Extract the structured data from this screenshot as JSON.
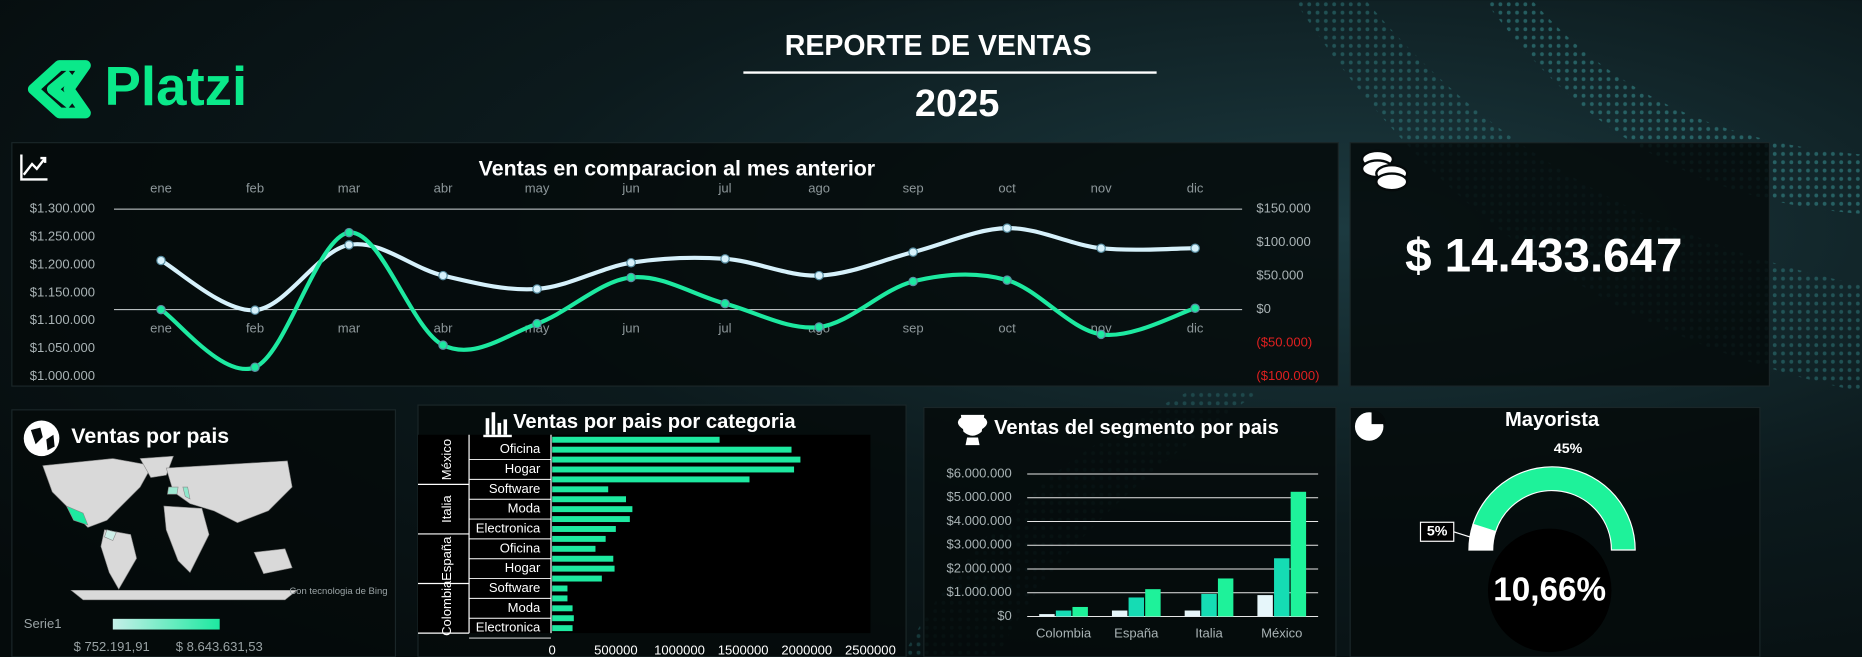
{
  "header": {
    "logo": "Platzi",
    "title": "REPORTE DE VENTAS",
    "year": "2025"
  },
  "kpi": {
    "value": "$ 14.433.647"
  },
  "map": {
    "title": "Ventas por pais",
    "attribution": "Con tecnologia de Bing",
    "legend_name": "Serie1",
    "legend_min": "$ 752.191,91",
    "legend_max": "$ 8.643.631,53"
  },
  "chart_data": [
    {
      "type": "line",
      "title": "Ventas en comparacion al mes anterior",
      "categories": [
        "ene",
        "feb",
        "mar",
        "abr",
        "may",
        "jun",
        "jul",
        "ago",
        "sep",
        "oct",
        "nov",
        "dic"
      ],
      "series": [
        {
          "color": "#d6f1fb",
          "values": [
            1208000,
            1119000,
            1236000,
            1181000,
            1157000,
            1204000,
            1211000,
            1181000,
            1223000,
            1266000,
            1230000,
            1230000
          ]
        },
        {
          "color": "#1de9a0",
          "axis": "y2",
          "values": [
            0,
            -86000,
            115000,
            -53000,
            -21000,
            48000,
            9000,
            -26000,
            42000,
            44000,
            -37000,
            2000
          ]
        }
      ],
      "ylim": [
        1000000,
        1300000
      ],
      "yticks": [
        {
          "value": 1000000,
          "label": "$1.000.000"
        },
        {
          "value": 1050000,
          "label": "$1.050.000"
        },
        {
          "value": 1100000,
          "label": "$1.100.000"
        },
        {
          "value": 1150000,
          "label": "$1.150.000"
        },
        {
          "value": 1200000,
          "label": "$1.200.000"
        },
        {
          "value": 1250000,
          "label": "$1.250.000"
        },
        {
          "value": 1300000,
          "label": "$1.300.000"
        }
      ],
      "y2lim": [
        -100000,
        150000
      ],
      "y2ticks": [
        {
          "value": -100000,
          "label": "($100.000)"
        },
        {
          "value": -50000,
          "label": "($50.000)"
        },
        {
          "value": 0,
          "label": "$0"
        },
        {
          "value": 50000,
          "label": "$50.000"
        },
        {
          "value": 100000,
          "label": "$100.000"
        },
        {
          "value": 150000,
          "label": "$150.000"
        }
      ],
      "negative_color": "#e02020",
      "smooth": true
    },
    {
      "type": "bar",
      "orientation": "horizontal",
      "title": "Ventas por pais por categoria",
      "groups": [
        "México",
        "Italia",
        "España",
        "Colombia"
      ],
      "categories": [
        null,
        "Oficina",
        null,
        "Hogar",
        null,
        "Software",
        null,
        "Moda",
        null,
        "Electronica",
        null,
        "Oficina",
        null,
        "Hogar",
        null,
        "Software",
        null,
        "Moda",
        null,
        "Electronica"
      ],
      "values": [
        1315000,
        1880000,
        1950000,
        1900000,
        1550000,
        440000,
        580000,
        630000,
        610000,
        500000,
        420000,
        340000,
        480000,
        490000,
        390000,
        120000,
        120000,
        160000,
        170000,
        160000
      ],
      "color": "#1de9a0",
      "xlim": [
        0,
        2500000
      ],
      "xticks": [
        0,
        500000,
        1000000,
        1500000,
        2000000,
        2500000
      ]
    },
    {
      "type": "bar",
      "orientation": "vertical",
      "title": "Ventas del segmento por pais",
      "categories": [
        "Colombia",
        "España",
        "Italia",
        "México"
      ],
      "series": [
        {
          "color": "#e6f6fa",
          "values": [
            100000,
            250000,
            250000,
            900000
          ]
        },
        {
          "color": "#15dcb4",
          "values": [
            250000,
            800000,
            950000,
            2450000
          ]
        },
        {
          "color": "#1ef29a",
          "values": [
            400000,
            1150000,
            1600000,
            5250000
          ]
        }
      ],
      "ylim": [
        0,
        6000000
      ],
      "yticks": [
        {
          "value": 0,
          "label": "$0"
        },
        {
          "value": 1000000,
          "label": "$1.000.000"
        },
        {
          "value": 2000000,
          "label": "$2.000.000"
        },
        {
          "value": 3000000,
          "label": "$3.000.000"
        },
        {
          "value": 4000000,
          "label": "$4.000.000"
        },
        {
          "value": 5000000,
          "label": "$5.000.000"
        },
        {
          "value": 6000000,
          "label": "$6.000.000"
        }
      ],
      "grid": true
    },
    {
      "type": "pie",
      "title": "Mayorista",
      "values": [
        5,
        45
      ],
      "value_labels": [
        "5%",
        "45%"
      ],
      "colors": [
        "#ffffff",
        "#1ef29a"
      ],
      "center_label": "10,66%",
      "half": true
    }
  ]
}
